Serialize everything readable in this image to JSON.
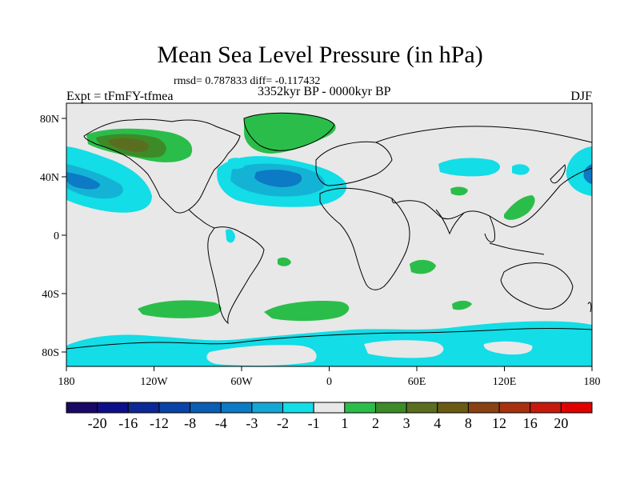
{
  "title": "Mean Sea Level Pressure (in hPa)",
  "stats_text": "rmsd= 0.787833 diff= -0.117432",
  "experiment_label": "Expt = tFmFY-tfmea",
  "period_label": "3352kyr BP - 0000kyr BP",
  "season_label": "DJF",
  "colors": {
    "background_field": "#e8e8e8",
    "neg_1_2": "#13e0e6",
    "neg_2_3": "#14b3d6",
    "neg_3_4": "#1187c8",
    "pos_1_2": "#2bbd4a",
    "pos_2_3": "#3d8b28",
    "pos_3_4": "#5b6e1f",
    "coast": "#000000"
  },
  "chart_data": {
    "type": "heatmap",
    "projection": "cylindrical-equidistant",
    "x_ticks": [
      "180",
      "120W",
      "60W",
      "0",
      "60E",
      "120E",
      "180"
    ],
    "y_ticks": [
      "80N",
      "40N",
      "0",
      "40S",
      "80S"
    ],
    "lon_range": [
      -180,
      180
    ],
    "lat_range": [
      -90,
      90
    ],
    "colorbar": {
      "labels": [
        "-20",
        "-16",
        "-12",
        "-8",
        "-4",
        "-3",
        "-2",
        "-1",
        "1",
        "2",
        "3",
        "4",
        "8",
        "12",
        "16",
        "20"
      ],
      "colors": [
        "#1a0866",
        "#0d0f8a",
        "#0b2896",
        "#0a44a8",
        "#0a5fb5",
        "#0c7ac4",
        "#14a6d4",
        "#13dde6",
        "#e8e8e8",
        "#2bbd4a",
        "#3d8b28",
        "#5b6e1f",
        "#6b5a13",
        "#8a4214",
        "#a8310f",
        "#c81a0c",
        "#e00000"
      ]
    },
    "anomaly_regions": [
      {
        "name": "north-pacific-low",
        "sign": "positive",
        "max_level": "3-4",
        "lon": [
          -180,
          -130
        ],
        "lat": [
          35,
          75
        ]
      },
      {
        "name": "greenland-high",
        "sign": "positive",
        "max_level": "1-2",
        "lon": [
          -60,
          -10
        ],
        "lat": [
          55,
          85
        ]
      },
      {
        "name": "north-atlantic",
        "sign": "negative",
        "max_level": "-3 to -4",
        "lon": [
          -80,
          15
        ],
        "lat": [
          20,
          55
        ]
      },
      {
        "name": "north-pacific-west",
        "sign": "negative",
        "max_level": "-3 to -4",
        "lon": [
          -180,
          -140
        ],
        "lat": [
          15,
          60
        ]
      },
      {
        "name": "east-asia",
        "sign": "positive",
        "max_level": "1-2",
        "lon": [
          120,
          150
        ],
        "lat": [
          10,
          40
        ]
      },
      {
        "name": "southern-ocean-belts",
        "sign": "positive",
        "max_level": "1-2",
        "lon": [
          -130,
          90
        ],
        "lat": [
          -55,
          -35
        ]
      },
      {
        "name": "antarctica",
        "sign": "negative",
        "max_level": "-1 to -2",
        "lon": [
          -180,
          180
        ],
        "lat": [
          -90,
          -55
        ]
      }
    ]
  }
}
